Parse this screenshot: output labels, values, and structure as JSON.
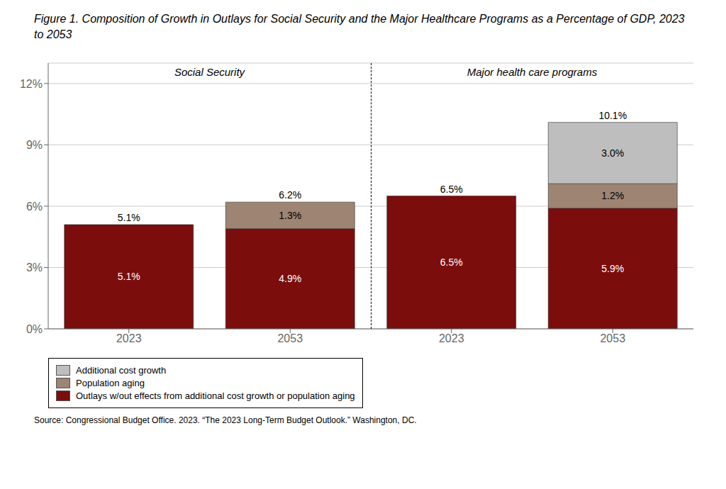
{
  "chart_data": {
    "type": "bar",
    "stacked": true,
    "title": "Figure 1. Composition of Growth in Outlays for Social Security and the Major Healthcare Programs as a Percentage of GDP, 2023 to 2053",
    "categories": [
      "2023",
      "2053",
      "2023",
      "2053"
    ],
    "series": [
      {
        "name": "Outlays w/out effects from additional cost growth or population aging",
        "color": "#7B0D0D",
        "values": [
          5.1,
          4.9,
          6.5,
          5.9
        ],
        "value_labels": [
          "5.1%",
          "4.9%",
          "6.5%",
          "5.9%"
        ]
      },
      {
        "name": "Population aging",
        "color": "#9E8472",
        "values": [
          0.0,
          1.3,
          0.0,
          1.2
        ],
        "value_labels": [
          null,
          "1.3%",
          null,
          "1.2%"
        ]
      },
      {
        "name": "Additional cost growth",
        "color": "#BEBEBE",
        "values": [
          0.0,
          0.0,
          0.0,
          3.0
        ],
        "value_labels": [
          null,
          null,
          null,
          "3.0%"
        ]
      }
    ],
    "totals": {
      "values": [
        5.1,
        6.2,
        6.5,
        10.1
      ],
      "value_labels": [
        "5.1%",
        "6.2%",
        "6.5%",
        "10.1%"
      ]
    },
    "annotations": [
      {
        "text": "Social Security"
      },
      {
        "text": "Major health care programs"
      }
    ],
    "source": "Source: Congressional Budget Office. 2023. “The 2023 Long-Term Budget Outlook.” Washington, DC.",
    "ylim": [
      0,
      13.0
    ],
    "yticks": [
      {
        "value": 0,
        "label": "0%"
      },
      {
        "value": 3,
        "label": "3%"
      },
      {
        "value": 6,
        "label": "6%"
      },
      {
        "value": 9,
        "label": "9%"
      },
      {
        "value": 12,
        "label": "12%"
      }
    ],
    "grid": true,
    "legend": "bottom",
    "data_labels": true
  }
}
